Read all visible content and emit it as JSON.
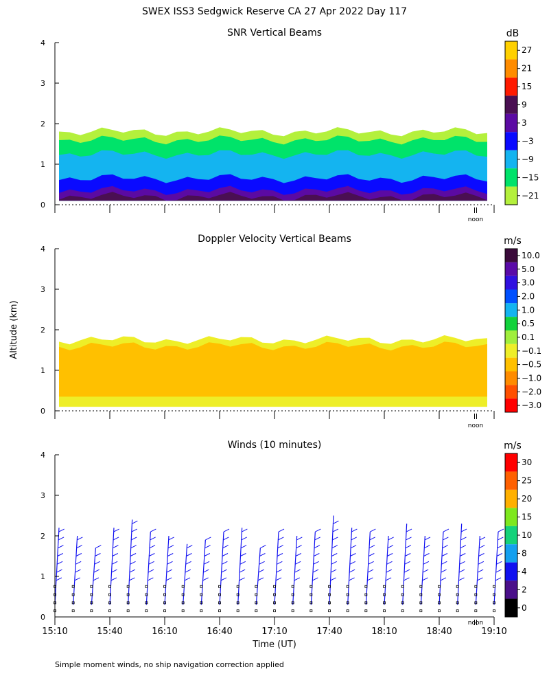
{
  "figure": {
    "title": "SWEX ISS3 Sedgwick Reserve CA  27 Apr 2022 Day 117",
    "ylabel": "Altitude (km)",
    "xlabel": "Time (UT)",
    "footnote": "Simple moment winds, no ship navigation correction applied"
  },
  "chart_data": [
    {
      "type": "heatmap",
      "title": "SNR Vertical Beams",
      "unit": "dB",
      "xlabel": "Time (UT)",
      "ylabel": "Altitude (km)",
      "x_range": [
        "15:10",
        "19:10"
      ],
      "ylim": [
        0,
        4
      ],
      "yticks": [
        "0",
        "1",
        "2",
        "3",
        "4"
      ],
      "noon_label": "noon",
      "colorbar": {
        "labels": [
          "27",
          "21",
          "15",
          "9",
          "3",
          "−3",
          "−9",
          "−15",
          "−21"
        ],
        "colors": [
          "#ffd000",
          "#ff8c00",
          "#ff1a00",
          "#4a0f52",
          "#5b0aa3",
          "#0a0aff",
          "#14b4f0",
          "#00e36a",
          "#b4f03c"
        ]
      },
      "layers": [
        {
          "value": -21,
          "color": "#b4f03c",
          "bottom_km": 0.1,
          "top_km": 1.8
        },
        {
          "value": -15,
          "color": "#00e36a",
          "bottom_km": 0.1,
          "top_km": 1.6
        },
        {
          "value": -9,
          "color": "#14b4f0",
          "bottom_km": 0.1,
          "top_km": 1.25
        },
        {
          "value": -3,
          "color": "#0a0aff",
          "bottom_km": 0.1,
          "top_km": 0.65
        },
        {
          "value": 3,
          "color": "#5b0aa3",
          "bottom_km": 0.1,
          "top_km": 0.35
        },
        {
          "value": 9,
          "color": "#4a0f52",
          "bottom_km": 0.1,
          "top_km": 0.2
        }
      ]
    },
    {
      "type": "heatmap",
      "title": "Doppler Velocity Vertical Beams",
      "unit": "m/s",
      "xlabel": "Time (UT)",
      "ylabel": "Altitude (km)",
      "x_range": [
        "15:10",
        "19:10"
      ],
      "ylim": [
        0,
        4
      ],
      "yticks": [
        "0",
        "1",
        "2",
        "3",
        "4"
      ],
      "noon_label": "noon",
      "colorbar": {
        "labels": [
          "10.0",
          "5.0",
          "3.0",
          "2.0",
          "1.0",
          "0.5",
          "0.1",
          "−0.1",
          "−0.5",
          "−1.0",
          "−2.0",
          "−3.0"
        ],
        "colors": [
          "#3a0a3a",
          "#5a0aa8",
          "#3010e0",
          "#0050ff",
          "#14b4f0",
          "#12d23c",
          "#a0ee3c",
          "#eeee28",
          "#ffc000",
          "#ff8c00",
          "#ff5000",
          "#ff0000"
        ]
      },
      "layers": [
        {
          "value": -0.1,
          "color": "#eeee28",
          "bottom_km": 0.1,
          "top_km": 1.75
        },
        {
          "value": -0.5,
          "color": "#ffc000",
          "bottom_km": 0.35,
          "top_km": 1.6
        }
      ]
    },
    {
      "type": "scatter",
      "title": "Winds (10 minutes)",
      "unit": "m/s",
      "xlabel": "Time (UT)",
      "ylabel": "Altitude (km)",
      "x_range": [
        "15:10",
        "19:10"
      ],
      "xticks": [
        "15:10",
        "15:40",
        "16:10",
        "16:40",
        "17:10",
        "17:40",
        "18:10",
        "18:40",
        "19:10"
      ],
      "ylim": [
        0,
        4
      ],
      "yticks": [
        "0",
        "1",
        "2",
        "3",
        "4"
      ],
      "noon_label": "noon",
      "colorbar": {
        "labels": [
          "30",
          "25",
          "20",
          "15",
          "10",
          "8",
          "4",
          "2",
          "0"
        ],
        "colors": [
          "#ff0000",
          "#ff6000",
          "#ffb000",
          "#7ee81e",
          "#14d27a",
          "#14a0f0",
          "#1010f0",
          "#4a0f8a",
          "#000000"
        ]
      },
      "profiles": [
        {
          "time": "15:10",
          "top_km": 2.2
        },
        {
          "time": "15:20",
          "top_km": 2.0
        },
        {
          "time": "15:30",
          "top_km": 1.7
        },
        {
          "time": "15:40",
          "top_km": 2.2
        },
        {
          "time": "15:50",
          "top_km": 2.4
        },
        {
          "time": "16:00",
          "top_km": 2.1
        },
        {
          "time": "16:10",
          "top_km": 2.0
        },
        {
          "time": "16:20",
          "top_km": 1.8
        },
        {
          "time": "16:30",
          "top_km": 1.9
        },
        {
          "time": "16:40",
          "top_km": 2.1
        },
        {
          "time": "16:50",
          "top_km": 2.2
        },
        {
          "time": "17:00",
          "top_km": 1.7
        },
        {
          "time": "17:10",
          "top_km": 2.1
        },
        {
          "time": "17:20",
          "top_km": 2.0
        },
        {
          "time": "17:30",
          "top_km": 2.1
        },
        {
          "time": "17:40",
          "top_km": 2.5
        },
        {
          "time": "17:50",
          "top_km": 2.2
        },
        {
          "time": "18:00",
          "top_km": 2.1
        },
        {
          "time": "18:10",
          "top_km": 2.0
        },
        {
          "time": "18:20",
          "top_km": 2.3
        },
        {
          "time": "18:30",
          "top_km": 2.0
        },
        {
          "time": "18:40",
          "top_km": 2.1
        },
        {
          "time": "18:50",
          "top_km": 2.3
        },
        {
          "time": "19:00",
          "top_km": 2.0
        },
        {
          "time": "19:10",
          "top_km": 2.1
        }
      ]
    }
  ]
}
